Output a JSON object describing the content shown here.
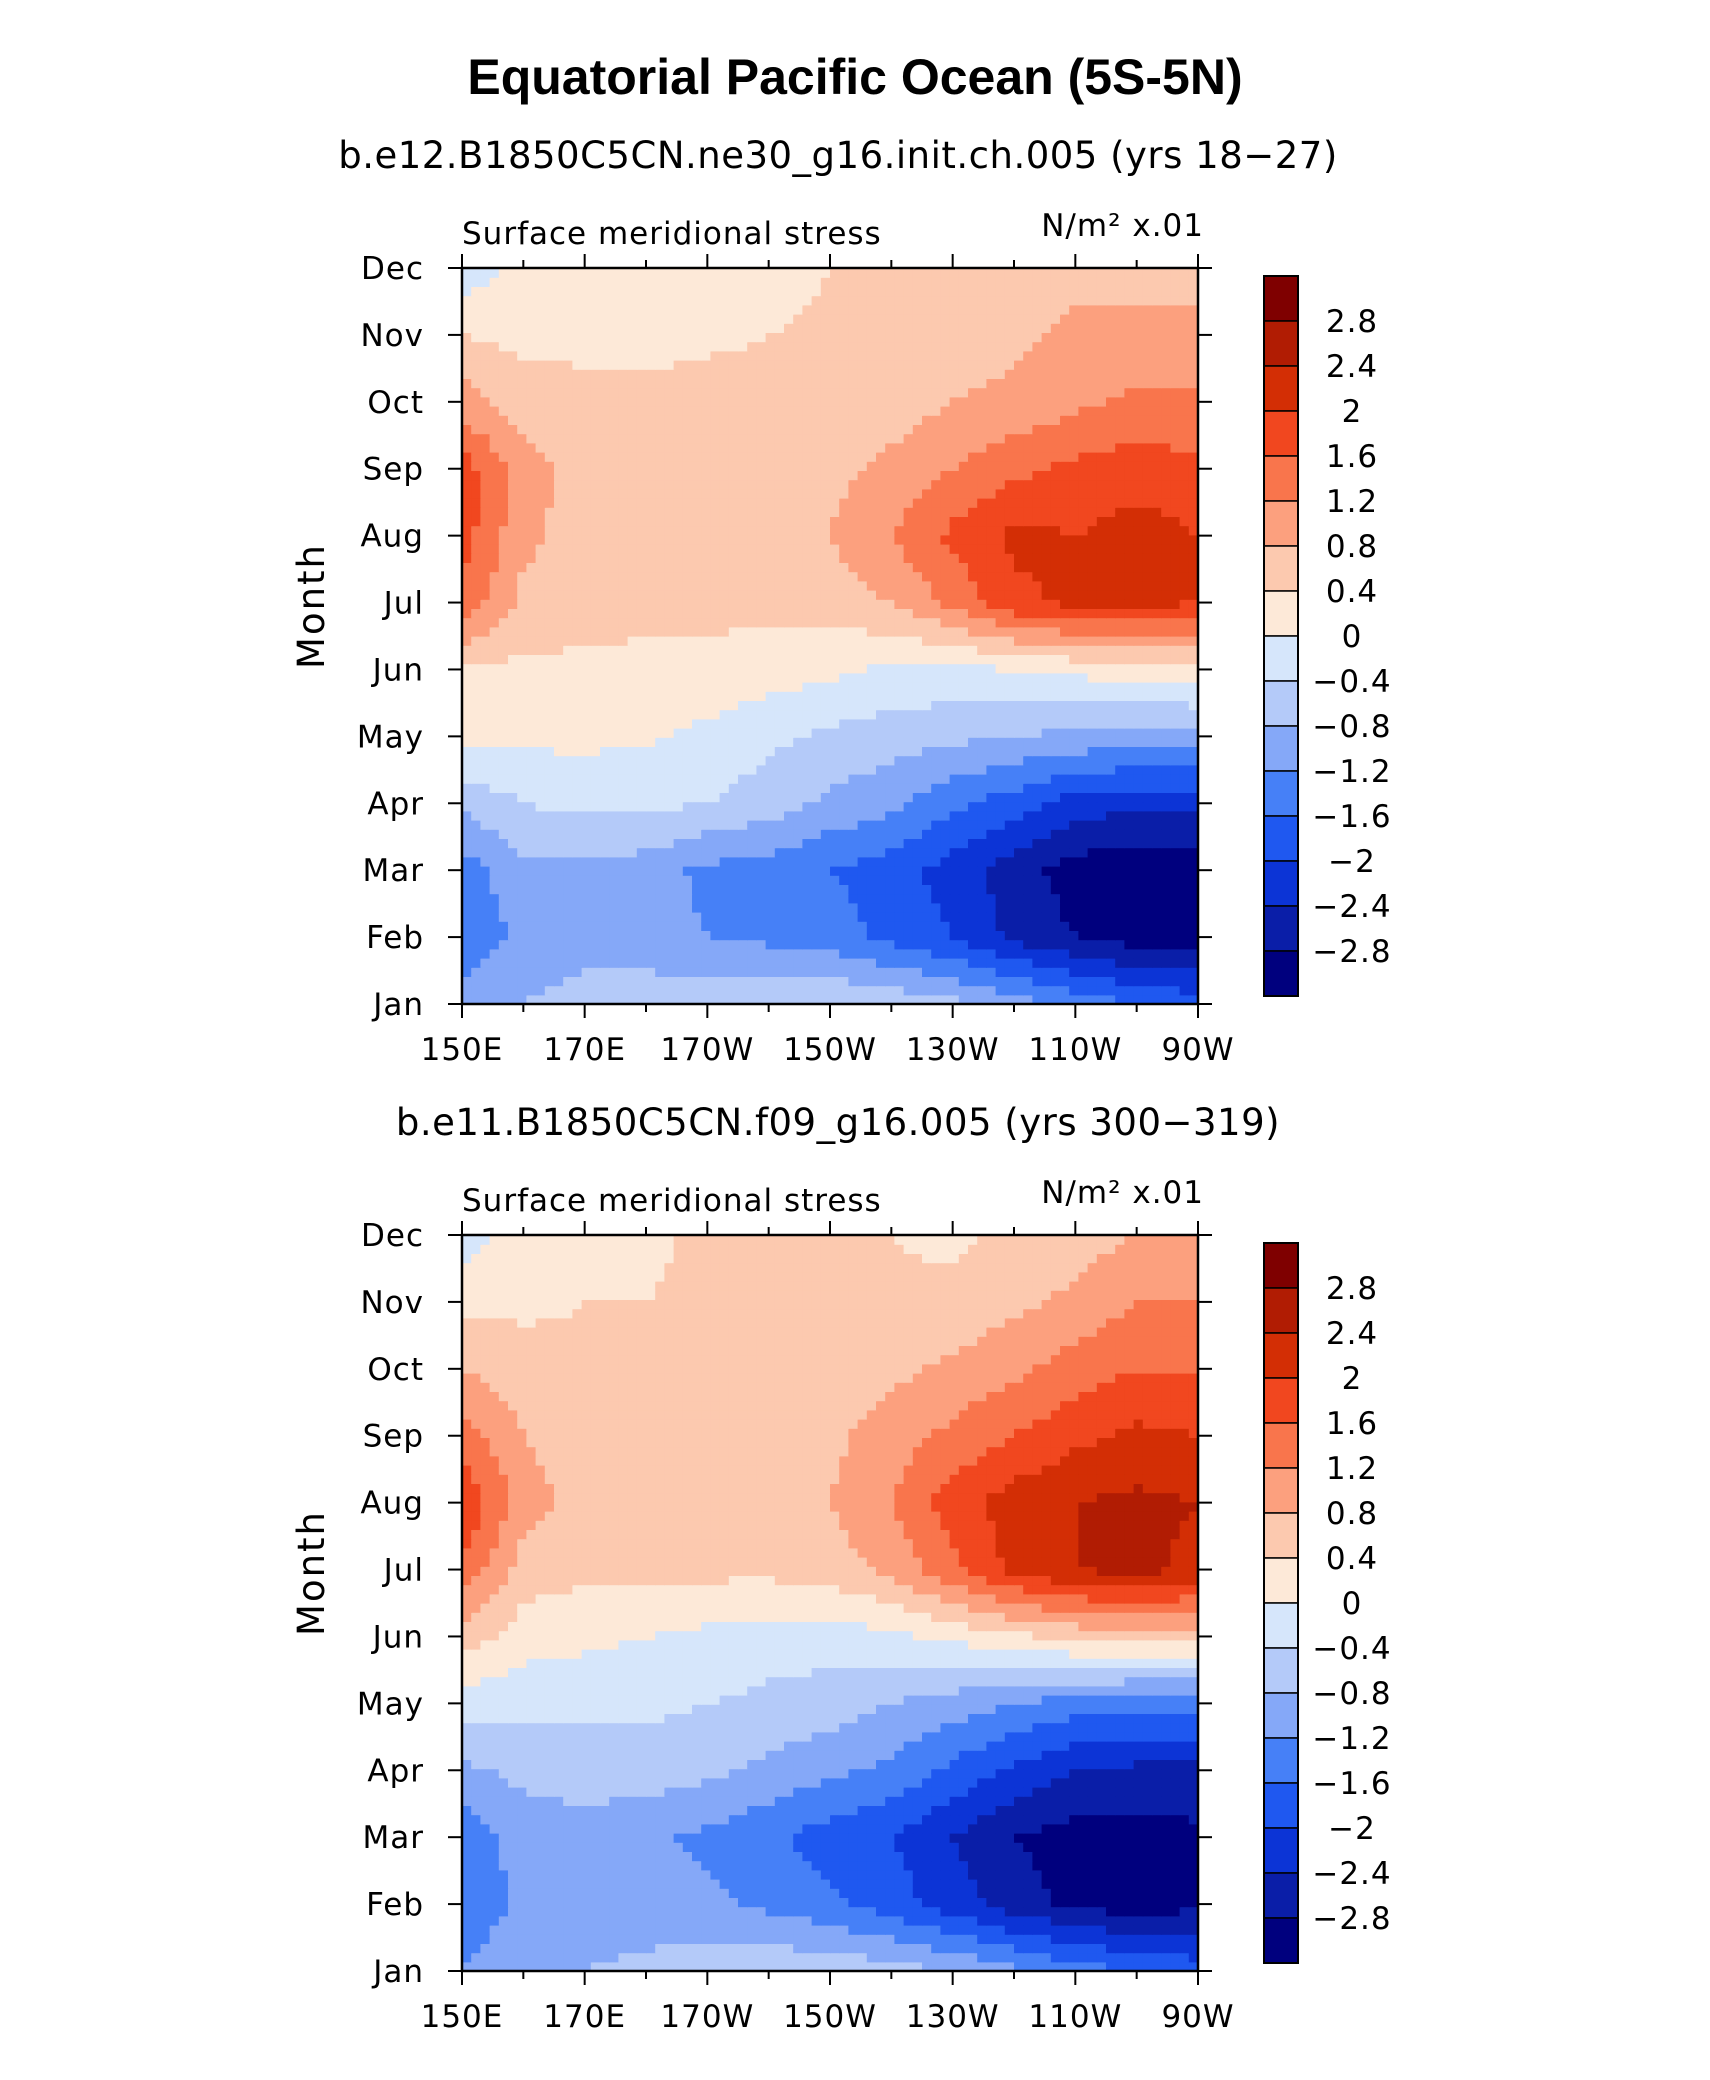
{
  "figure": {
    "title": "Equatorial Pacific Ocean (5S-5N)"
  },
  "colors": {
    "levels": [
      -2.8,
      -2.4,
      -2.0,
      -1.6,
      -1.2,
      -0.8,
      -0.4,
      0,
      0.4,
      0.8,
      1.2,
      1.6,
      2.0,
      2.4,
      2.8
    ],
    "fills": [
      "#00007e",
      "#0a1ea8",
      "#0c34d6",
      "#1f58f0",
      "#4680f7",
      "#85a8f8",
      "#b4caf9",
      "#d6e6fb",
      "#fde9d8",
      "#fcc9af",
      "#fca07e",
      "#f9754c",
      "#f1471f",
      "#d32e05",
      "#b11c03",
      "#7f0000"
    ]
  },
  "colorbar": {
    "tick_labels": [
      "2.8",
      "2.4",
      "2",
      "1.6",
      "1.2",
      "0.8",
      "0.4",
      "0",
      "−0.4",
      "−0.8",
      "−1.2",
      "−1.6",
      "−2",
      "−2.4",
      "−2.8"
    ]
  },
  "chart_data": [
    {
      "type": "heatmap",
      "title": "b.e12.B1850C5CN.ne30_g16.init.ch.005 (yrs 18−27)",
      "subtitle_left": "Surface meridional stress",
      "subtitle_right": "N/m² x.01",
      "ylabel": "Month",
      "xlabel": "",
      "x_ticks": [
        "150E",
        "170E",
        "170W",
        "150W",
        "130W",
        "110W",
        "90W"
      ],
      "y_ticks": [
        "Jan",
        "Feb",
        "Mar",
        "Apr",
        "May",
        "Jun",
        "Jul",
        "Aug",
        "Sep",
        "Oct",
        "Nov",
        "Dec"
      ],
      "x_range_deg_east": [
        150,
        270
      ],
      "y_range_month": [
        1,
        12
      ],
      "x": [
        150,
        160,
        170,
        180,
        190,
        200,
        210,
        220,
        230,
        240,
        250,
        260,
        270
      ],
      "y": [
        1,
        2,
        3,
        4,
        5,
        6,
        7,
        8,
        9,
        10,
        11,
        12
      ],
      "z": [
        [
          -1.0,
          -0.8,
          -0.6,
          -0.6,
          -0.5,
          -0.4,
          -0.4,
          -0.5,
          -0.7,
          -1.0,
          -1.3,
          -1.6,
          -1.8
        ],
        [
          -1.5,
          -1.1,
          -1.0,
          -1.0,
          -1.2,
          -1.3,
          -1.4,
          -1.7,
          -2.0,
          -2.5,
          -2.8,
          -3.0,
          -3.0
        ],
        [
          -1.4,
          -0.9,
          -0.9,
          -1.0,
          -1.3,
          -1.4,
          -1.6,
          -1.8,
          -2.2,
          -2.6,
          -3.0,
          -3.1,
          -3.0
        ],
        [
          -0.7,
          -0.4,
          -0.3,
          -0.3,
          -0.4,
          -0.6,
          -0.9,
          -1.1,
          -1.5,
          -1.8,
          -2.2,
          -2.3,
          -2.3
        ],
        [
          0.1,
          0.1,
          0.1,
          0.05,
          -0.1,
          -0.3,
          -0.5,
          -0.6,
          -0.7,
          -0.8,
          -0.9,
          -1.0,
          -1.0
        ],
        [
          0.35,
          0.3,
          0.3,
          0.3,
          0.3,
          0.2,
          0.1,
          -0.1,
          -0.1,
          0.0,
          0.1,
          0.2,
          0.3
        ],
        [
          1.5,
          0.7,
          0.6,
          0.5,
          0.5,
          0.5,
          0.6,
          0.8,
          1.3,
          1.9,
          2.1,
          2.1,
          2.0
        ],
        [
          1.8,
          0.9,
          0.6,
          0.6,
          0.6,
          0.6,
          0.8,
          1.2,
          1.7,
          2.1,
          2.0,
          2.2,
          2.0
        ],
        [
          1.8,
          1.0,
          0.6,
          0.6,
          0.6,
          0.6,
          0.7,
          0.9,
          1.2,
          1.5,
          1.7,
          1.8,
          1.7
        ],
        [
          1.0,
          0.6,
          0.5,
          0.5,
          0.5,
          0.5,
          0.5,
          0.6,
          0.8,
          0.9,
          1.1,
          1.3,
          1.3
        ],
        [
          0.4,
          0.3,
          0.3,
          0.3,
          0.35,
          0.4,
          0.45,
          0.5,
          0.6,
          0.7,
          0.9,
          0.9,
          0.9
        ],
        [
          -0.3,
          0.2,
          0.3,
          0.3,
          0.3,
          0.3,
          0.4,
          0.4,
          0.5,
          0.6,
          0.7,
          0.7,
          0.7
        ]
      ]
    },
    {
      "type": "heatmap",
      "title": "b.e11.B1850C5CN.f09_g16.005 (yrs 300−319)",
      "subtitle_left": "Surface meridional stress",
      "subtitle_right": "N/m² x.01",
      "ylabel": "Month",
      "xlabel": "",
      "x_ticks": [
        "150E",
        "170E",
        "170W",
        "150W",
        "130W",
        "110W",
        "90W"
      ],
      "y_ticks": [
        "Jan",
        "Feb",
        "Mar",
        "Apr",
        "May",
        "Jun",
        "Jul",
        "Aug",
        "Sep",
        "Oct",
        "Nov",
        "Dec"
      ],
      "x_range_deg_east": [
        150,
        270
      ],
      "y_range_month": [
        1,
        12
      ],
      "x": [
        150,
        160,
        170,
        180,
        190,
        200,
        210,
        220,
        230,
        240,
        250,
        260,
        270
      ],
      "y": [
        1,
        2,
        3,
        4,
        5,
        6,
        7,
        8,
        9,
        10,
        11,
        12
      ],
      "z": [
        [
          -1.2,
          -0.9,
          -0.8,
          -0.7,
          -0.6,
          -0.5,
          -0.5,
          -0.6,
          -0.8,
          -1.1,
          -1.4,
          -1.6,
          -1.8
        ],
        [
          -1.5,
          -1.1,
          -1.0,
          -1.0,
          -1.1,
          -1.3,
          -1.5,
          -1.8,
          -2.2,
          -2.6,
          -2.9,
          -3.0,
          -2.9
        ],
        [
          -1.5,
          -1.0,
          -1.0,
          -1.1,
          -1.3,
          -1.5,
          -1.8,
          -2.0,
          -2.4,
          -2.8,
          -3.0,
          -3.0,
          -2.9
        ],
        [
          -0.9,
          -0.7,
          -0.6,
          -0.6,
          -0.7,
          -0.9,
          -1.1,
          -1.3,
          -1.7,
          -2.1,
          -2.4,
          -2.5,
          -2.5
        ],
        [
          -0.2,
          -0.3,
          -0.3,
          -0.3,
          -0.4,
          -0.5,
          -0.6,
          -0.8,
          -1.0,
          -1.2,
          -1.4,
          -1.5,
          -1.5
        ],
        [
          0.6,
          0.2,
          0.1,
          0.0,
          -0.1,
          -0.2,
          -0.2,
          -0.1,
          0.1,
          0.3,
          0.5,
          0.6,
          0.6
        ],
        [
          1.5,
          0.6,
          0.5,
          0.5,
          0.5,
          0.5,
          0.6,
          0.9,
          1.5,
          2.1,
          2.4,
          2.5,
          2.3
        ],
        [
          2.0,
          1.0,
          0.6,
          0.6,
          0.6,
          0.6,
          0.8,
          1.2,
          1.8,
          2.2,
          2.4,
          2.5,
          2.4
        ],
        [
          1.4,
          0.8,
          0.6,
          0.5,
          0.5,
          0.6,
          0.7,
          1.0,
          1.3,
          1.6,
          1.9,
          2.1,
          2.0
        ],
        [
          0.8,
          0.6,
          0.5,
          0.5,
          0.5,
          0.5,
          0.6,
          0.7,
          0.9,
          1.1,
          1.4,
          1.6,
          1.6
        ],
        [
          0.3,
          0.3,
          0.4,
          0.4,
          0.5,
          0.5,
          0.5,
          0.5,
          0.5,
          0.7,
          0.9,
          1.2,
          1.2
        ],
        [
          -0.2,
          0.2,
          0.3,
          0.3,
          0.5,
          0.6,
          0.5,
          0.4,
          0.3,
          0.5,
          0.6,
          0.8,
          0.9
        ]
      ]
    }
  ]
}
